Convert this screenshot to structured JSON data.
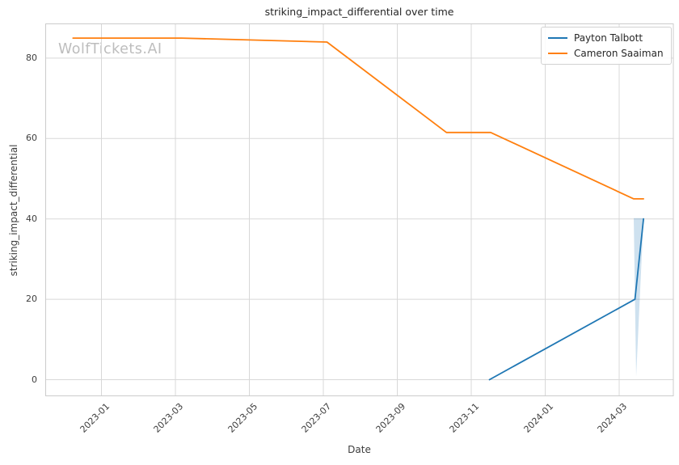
{
  "watermark": "WolfTickets.AI",
  "chart_data": {
    "type": "line",
    "title": "striking_impact_differential over time",
    "xlabel": "Date",
    "ylabel": "striking_impact_differential",
    "x_tick_labels": [
      "2023-01",
      "2023-03",
      "2023-05",
      "2023-07",
      "2023-09",
      "2023-11",
      "2024-01",
      "2024-03"
    ],
    "y_ticks": [
      0,
      20,
      40,
      60,
      80
    ],
    "y_tick_labels": [
      "0",
      "20",
      "40",
      "60",
      "80"
    ],
    "xlim": [
      "2022-11-16",
      "2024-04-15"
    ],
    "ylim": [
      -4,
      88.5
    ],
    "grid": true,
    "legend_position": "upper right",
    "series": [
      {
        "name": "Payton Talbott",
        "color": "#1f77b4",
        "points": [
          [
            "2023-11-16",
            0
          ],
          [
            "2024-03-14",
            20
          ],
          [
            "2024-03-21",
            40
          ]
        ],
        "ci_polygon": [
          [
            "2024-03-13",
            40.2
          ],
          [
            "2024-03-21",
            40.2
          ],
          [
            "2024-03-15",
            0.8
          ]
        ],
        "ci_opacity": 0.22
      },
      {
        "name": "Cameron Saaiman",
        "color": "#ff7f0e",
        "points": [
          [
            "2022-12-08",
            85
          ],
          [
            "2023-03-06",
            85
          ],
          [
            "2023-07-04",
            84
          ],
          [
            "2023-10-11",
            61.5
          ],
          [
            "2023-11-17",
            61.5
          ],
          [
            "2024-03-13",
            45
          ],
          [
            "2024-03-21",
            45
          ]
        ]
      }
    ],
    "colors": {
      "grid": "#d8d8d8",
      "spine": "#cccccc",
      "title_text": "#262626",
      "tick_text": "#3d3d3d",
      "watermark": "#bdbdbd",
      "legend_border": "#d2d2d2",
      "background": "#ffffff"
    }
  },
  "legend": {
    "items": [
      {
        "label": "Payton Talbott",
        "color": "#1f77b4"
      },
      {
        "label": "Cameron Saaiman",
        "color": "#ff7f0e"
      }
    ]
  }
}
